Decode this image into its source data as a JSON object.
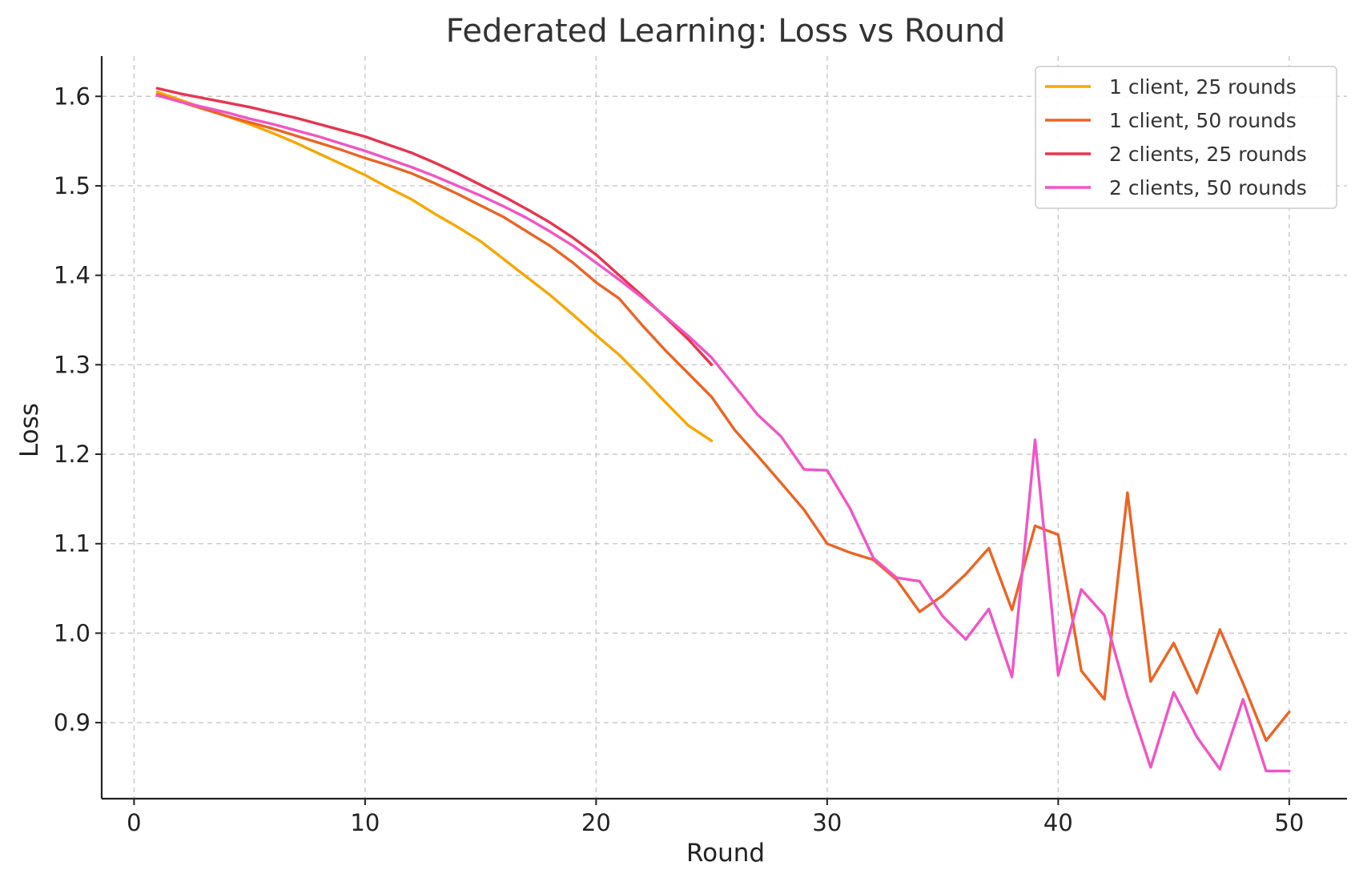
{
  "chart_data": {
    "type": "line",
    "title": "Federated Learning: Loss vs Round",
    "xlabel": "Round",
    "ylabel": "Loss",
    "xlim": [
      -1.4,
      52.5
    ],
    "ylim": [
      0.815,
      1.645
    ],
    "xticks": [
      0,
      10,
      20,
      30,
      40,
      50
    ],
    "yticks": [
      0.9,
      1.0,
      1.1,
      1.2,
      1.3,
      1.4,
      1.5,
      1.6
    ],
    "xtick_labels": [
      "0",
      "10",
      "20",
      "30",
      "40",
      "50"
    ],
    "ytick_labels": [
      "0.9",
      "1.0",
      "1.1",
      "1.2",
      "1.3",
      "1.4",
      "1.5",
      "1.6"
    ],
    "grid": true,
    "legend_position": "top-right",
    "series": [
      {
        "name": "1 client, 25 rounds",
        "color": "#f5a700",
        "x": [
          1,
          2,
          3,
          4,
          5,
          6,
          7,
          8,
          9,
          10,
          11,
          12,
          13,
          14,
          15,
          16,
          17,
          18,
          19,
          20,
          21,
          22,
          23,
          24,
          25
        ],
        "y": [
          1.605,
          1.596,
          1.587,
          1.578,
          1.569,
          1.559,
          1.548,
          1.536,
          1.524,
          1.512,
          1.498,
          1.485,
          1.469,
          1.454,
          1.438,
          1.418,
          1.398,
          1.378,
          1.356,
          1.333,
          1.311,
          1.285,
          1.258,
          1.232,
          1.215
        ]
      },
      {
        "name": "1 client, 50 rounds",
        "color": "#eb6424",
        "x": [
          1,
          2,
          3,
          4,
          5,
          6,
          7,
          8,
          9,
          10,
          11,
          12,
          13,
          14,
          15,
          16,
          17,
          18,
          19,
          20,
          21,
          22,
          23,
          24,
          25,
          26,
          27,
          28,
          29,
          30,
          31,
          32,
          33,
          34,
          35,
          36,
          37,
          38,
          39,
          40,
          41,
          42,
          43,
          44,
          45,
          46,
          47,
          48,
          49,
          50
        ],
        "y": [
          1.602,
          1.594,
          1.586,
          1.578,
          1.571,
          1.564,
          1.556,
          1.548,
          1.54,
          1.531,
          1.523,
          1.514,
          1.503,
          1.491,
          1.478,
          1.465,
          1.449,
          1.433,
          1.414,
          1.392,
          1.374,
          1.344,
          1.316,
          1.29,
          1.264,
          1.227,
          1.198,
          1.168,
          1.138,
          1.1,
          1.09,
          1.082,
          1.06,
          1.024,
          1.042,
          1.066,
          1.095,
          1.026,
          1.12,
          1.11,
          0.958,
          0.926,
          1.157,
          0.946,
          0.989,
          0.933,
          1.004,
          0.944,
          0.88,
          0.912
        ]
      },
      {
        "name": "2 clients, 25 rounds",
        "color": "#e8344e",
        "x": [
          1,
          2,
          3,
          4,
          5,
          6,
          7,
          8,
          9,
          10,
          11,
          12,
          13,
          14,
          15,
          16,
          17,
          18,
          19,
          20,
          21,
          22,
          23,
          24,
          25
        ],
        "y": [
          1.609,
          1.603,
          1.598,
          1.593,
          1.588,
          1.582,
          1.576,
          1.569,
          1.562,
          1.555,
          1.546,
          1.537,
          1.526,
          1.514,
          1.501,
          1.488,
          1.474,
          1.459,
          1.442,
          1.423,
          1.4,
          1.377,
          1.353,
          1.328,
          1.3
        ]
      },
      {
        "name": "2 clients, 50 rounds",
        "color": "#f055c5",
        "x": [
          1,
          2,
          3,
          4,
          5,
          6,
          7,
          8,
          9,
          10,
          11,
          12,
          13,
          14,
          15,
          16,
          17,
          18,
          19,
          20,
          21,
          22,
          23,
          24,
          25,
          26,
          27,
          28,
          29,
          30,
          31,
          32,
          33,
          34,
          35,
          36,
          37,
          38,
          39,
          40,
          41,
          42,
          43,
          44,
          45,
          46,
          47,
          48,
          49,
          50
        ],
        "y": [
          1.601,
          1.594,
          1.588,
          1.582,
          1.575,
          1.569,
          1.562,
          1.555,
          1.547,
          1.539,
          1.53,
          1.521,
          1.511,
          1.5,
          1.489,
          1.477,
          1.464,
          1.449,
          1.433,
          1.414,
          1.395,
          1.375,
          1.354,
          1.332,
          1.308,
          1.276,
          1.244,
          1.22,
          1.183,
          1.182,
          1.139,
          1.084,
          1.062,
          1.058,
          1.019,
          0.993,
          1.027,
          0.951,
          1.216,
          0.953,
          1.049,
          1.02,
          0.929,
          0.85,
          0.934,
          0.884,
          0.848,
          0.926,
          0.846,
          0.846
        ]
      }
    ]
  }
}
